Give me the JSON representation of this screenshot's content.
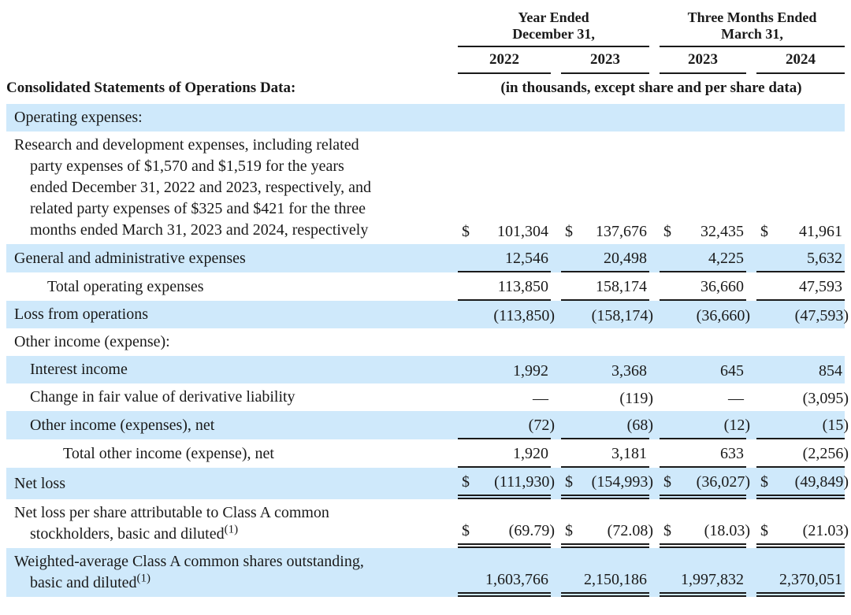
{
  "colors": {
    "row_highlight": "#cfe9fb",
    "text": "#1a1a1a",
    "rule": "#1a1a1a"
  },
  "header": {
    "group1": {
      "line1": "Year Ended",
      "line2": "December 31,"
    },
    "group2": {
      "line1": "Three Months Ended",
      "line2": "March 31,"
    },
    "years": [
      "2022",
      "2023",
      "2023",
      "2024"
    ],
    "section_title": "Consolidated Statements of Operations Data:",
    "units_note": "(in thousands, except share and per share data)"
  },
  "table": {
    "rows": [
      {
        "name": "row-operating-expenses-header",
        "label": "Operating expenses:",
        "indent": 0,
        "bg": "blue",
        "values": null,
        "underline": "none"
      },
      {
        "name": "row-research-development-expenses",
        "label_lines": [
          "Research and development expenses, including related",
          "party expenses of $1,570 and $1,519 for the years",
          "ended December 31, 2022 and 2023, respectively, and",
          "related party expenses of $325 and $421 for the three",
          "months ended March 31, 2023 and 2024, respectively"
        ],
        "hang": true,
        "bg": "white",
        "dollar": true,
        "valign": "bottom",
        "values": [
          "101,304",
          "137,676",
          "32,435",
          "41,961"
        ],
        "underline": "none"
      },
      {
        "name": "row-general-administrative-expenses",
        "label": "General and administrative expenses",
        "indent": 0,
        "bg": "blue",
        "values": [
          "12,546",
          "20,498",
          "4,225",
          "5,632"
        ],
        "underline": "single"
      },
      {
        "name": "row-total-operating-expenses",
        "label": "Total operating expenses",
        "indent": 2,
        "bg": "white",
        "values": [
          "113,850",
          "158,174",
          "36,660",
          "47,593"
        ],
        "underline": "single"
      },
      {
        "name": "row-loss-from-operations",
        "label": "Loss from operations",
        "indent": 0,
        "bg": "blue",
        "values": [
          "(113,850)",
          "(158,174)",
          "(36,660)",
          "(47,593)"
        ],
        "underline": "none"
      },
      {
        "name": "row-other-income-expense-header",
        "label": "Other income (expense):",
        "indent": 0,
        "bg": "white",
        "values": null,
        "underline": "none"
      },
      {
        "name": "row-interest-income",
        "label": "Interest income",
        "indent": 1,
        "bg": "blue",
        "values": [
          "1,992",
          "3,368",
          "645",
          "854"
        ],
        "underline": "none"
      },
      {
        "name": "row-change-fair-value-derivative-liability",
        "label": "Change in fair value of derivative liability",
        "indent": 1,
        "bg": "white",
        "values": [
          "—",
          "(119)",
          "—",
          "(3,095)"
        ],
        "underline": "none"
      },
      {
        "name": "row-other-income-expenses-net",
        "label": "Other income (expenses), net",
        "indent": 1,
        "bg": "blue",
        "values": [
          "(72)",
          "(68)",
          "(12)",
          "(15)"
        ],
        "underline": "single"
      },
      {
        "name": "row-total-other-income-expense-net",
        "label": "Total other income (expense), net",
        "indent": 3,
        "bg": "white",
        "values": [
          "1,920",
          "3,181",
          "633",
          "(2,256)"
        ],
        "underline": "single"
      },
      {
        "name": "row-net-loss",
        "label": "Net loss",
        "indent": 0,
        "bg": "blue",
        "dollar": true,
        "values": [
          "(111,930)",
          "(154,993)",
          "(36,027)",
          "(49,849)"
        ],
        "underline": "double"
      },
      {
        "name": "row-net-loss-per-share",
        "label_lines": [
          "Net loss per share attributable to Class A common",
          "stockholders, basic and diluted"
        ],
        "sup": "(1)",
        "hang": true,
        "bg": "white",
        "dollar": true,
        "valign": "bottom",
        "values": [
          "(69.79)",
          "(72.08)",
          "(18.03)",
          "(21.03)"
        ],
        "underline": "double"
      },
      {
        "name": "row-weighted-average-shares-outstanding",
        "label_lines": [
          "Weighted-average Class A common shares outstanding,",
          "basic and diluted"
        ],
        "sup": "(1)",
        "hang": true,
        "bg": "blue",
        "valign": "bottom",
        "values": [
          "1,603,766",
          "2,150,186",
          "1,997,832",
          "2,370,051"
        ],
        "underline": "double"
      }
    ]
  }
}
